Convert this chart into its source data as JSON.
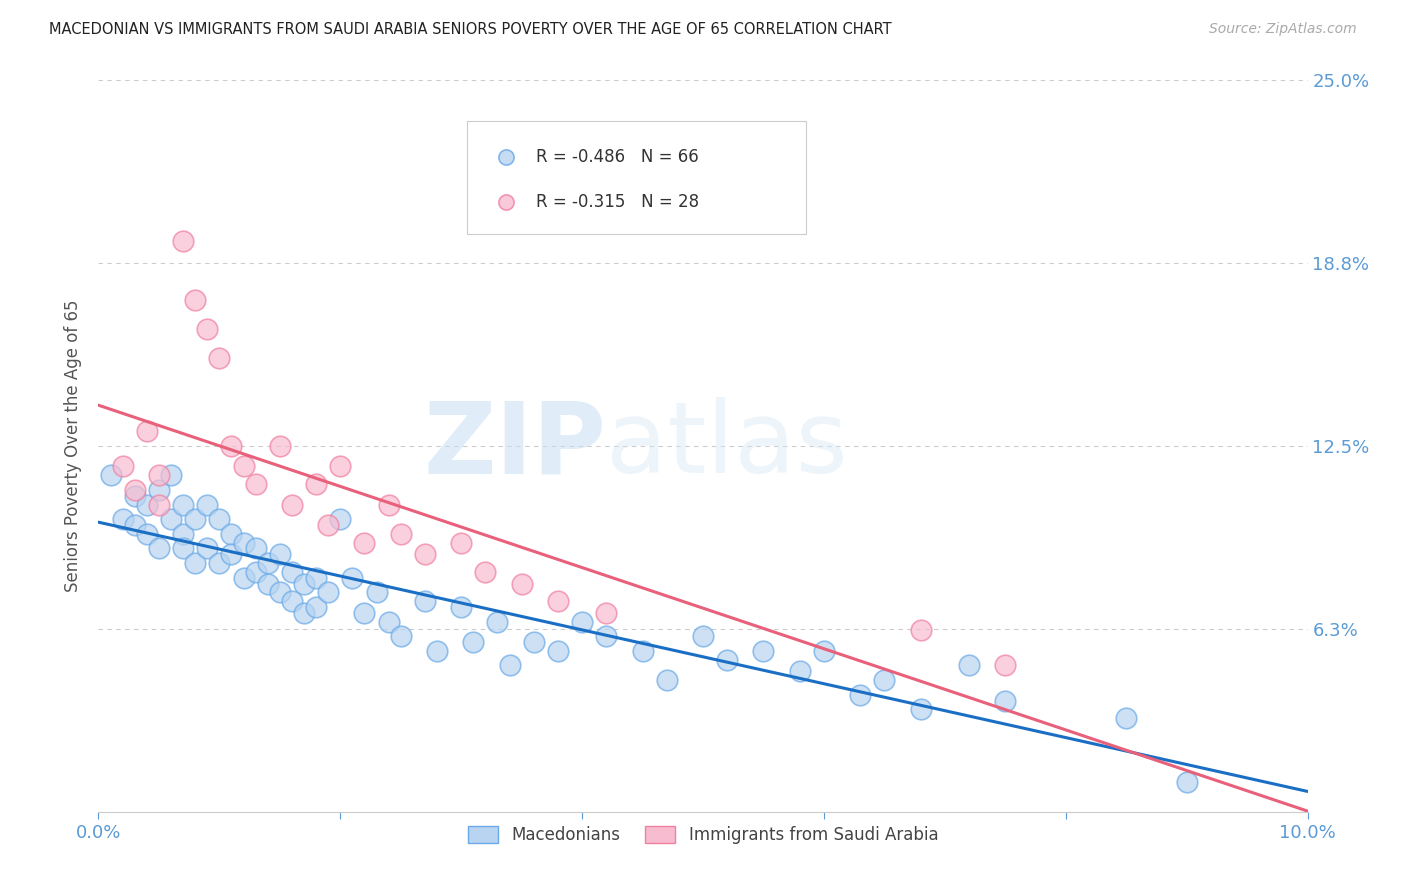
{
  "title": "MACEDONIAN VS IMMIGRANTS FROM SAUDI ARABIA SENIORS POVERTY OVER THE AGE OF 65 CORRELATION CHART",
  "source": "Source: ZipAtlas.com",
  "ylabel": "Seniors Poverty Over the Age of 65",
  "xlim": [
    0.0,
    0.1
  ],
  "ylim": [
    0.0,
    0.25
  ],
  "yticks": [
    0.0,
    0.0625,
    0.125,
    0.1875,
    0.25
  ],
  "ytick_labels": [
    "",
    "6.3%",
    "12.5%",
    "18.8%",
    "25.0%"
  ],
  "xticks": [
    0.0,
    0.02,
    0.04,
    0.06,
    0.08,
    0.1
  ],
  "xtick_labels": [
    "0.0%",
    "",
    "",
    "",
    "",
    "10.0%"
  ],
  "watermark_zip": "ZIP",
  "watermark_atlas": "atlas",
  "title_color": "#222222",
  "axis_color": "#5b9bd5",
  "grid_color": "#cccccc",
  "mac_color": "#b8d4f0",
  "saudi_color": "#f8bcd0",
  "mac_edge_color": "#6aaae8",
  "saudi_edge_color": "#f080a0",
  "mac_line_color": "#1a6fc4",
  "saudi_line_color": "#e8607a",
  "mac_R": -0.486,
  "mac_N": 66,
  "saudi_R": -0.315,
  "saudi_N": 28,
  "mac_x": [
    0.001,
    0.002,
    0.003,
    0.003,
    0.004,
    0.004,
    0.005,
    0.005,
    0.006,
    0.006,
    0.007,
    0.007,
    0.007,
    0.008,
    0.008,
    0.009,
    0.009,
    0.01,
    0.01,
    0.011,
    0.011,
    0.012,
    0.012,
    0.013,
    0.013,
    0.014,
    0.014,
    0.015,
    0.015,
    0.016,
    0.016,
    0.017,
    0.017,
    0.018,
    0.018,
    0.019,
    0.02,
    0.021,
    0.022,
    0.023,
    0.024,
    0.025,
    0.027,
    0.028,
    0.03,
    0.031,
    0.033,
    0.034,
    0.036,
    0.038,
    0.04,
    0.042,
    0.045,
    0.047,
    0.05,
    0.052,
    0.055,
    0.058,
    0.06,
    0.063,
    0.065,
    0.068,
    0.072,
    0.075,
    0.085,
    0.09
  ],
  "mac_y": [
    0.115,
    0.1,
    0.108,
    0.098,
    0.095,
    0.105,
    0.11,
    0.09,
    0.115,
    0.1,
    0.105,
    0.095,
    0.09,
    0.1,
    0.085,
    0.105,
    0.09,
    0.1,
    0.085,
    0.095,
    0.088,
    0.092,
    0.08,
    0.09,
    0.082,
    0.085,
    0.078,
    0.088,
    0.075,
    0.082,
    0.072,
    0.078,
    0.068,
    0.08,
    0.07,
    0.075,
    0.1,
    0.08,
    0.068,
    0.075,
    0.065,
    0.06,
    0.072,
    0.055,
    0.07,
    0.058,
    0.065,
    0.05,
    0.058,
    0.055,
    0.065,
    0.06,
    0.055,
    0.045,
    0.06,
    0.052,
    0.055,
    0.048,
    0.055,
    0.04,
    0.045,
    0.035,
    0.05,
    0.038,
    0.032,
    0.01
  ],
  "saudi_x": [
    0.002,
    0.003,
    0.004,
    0.005,
    0.005,
    0.007,
    0.008,
    0.009,
    0.01,
    0.011,
    0.012,
    0.013,
    0.015,
    0.016,
    0.018,
    0.019,
    0.02,
    0.022,
    0.024,
    0.025,
    0.027,
    0.03,
    0.032,
    0.035,
    0.038,
    0.042,
    0.068,
    0.075
  ],
  "saudi_y": [
    0.118,
    0.11,
    0.13,
    0.115,
    0.105,
    0.195,
    0.175,
    0.165,
    0.155,
    0.125,
    0.118,
    0.112,
    0.125,
    0.105,
    0.112,
    0.098,
    0.118,
    0.092,
    0.105,
    0.095,
    0.088,
    0.092,
    0.082,
    0.078,
    0.072,
    0.068,
    0.062,
    0.05
  ],
  "mac_line_x0": 0.0,
  "mac_line_y0": 0.12,
  "mac_line_x1": 0.1,
  "mac_line_y1": 0.005,
  "saudi_line_x0": 0.0,
  "saudi_line_y0": 0.11,
  "saudi_line_x1": 0.1,
  "saudi_line_y1": 0.018
}
